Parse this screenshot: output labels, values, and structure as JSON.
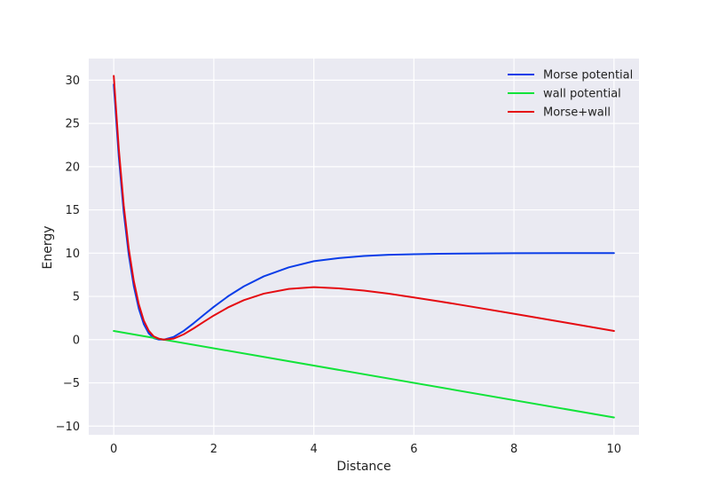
{
  "chart_data": {
    "type": "line",
    "title": "",
    "xlabel": "Distance",
    "ylabel": "Energy",
    "xlim": [
      -0.5,
      10.5
    ],
    "ylim": [
      -11,
      32.5
    ],
    "xticks": [
      0,
      2,
      4,
      6,
      8,
      10
    ],
    "xtick_labels": [
      "0",
      "2",
      "4",
      "6",
      "8",
      "10"
    ],
    "yticks": [
      -10,
      -5,
      0,
      5,
      10,
      15,
      20,
      25,
      30
    ],
    "ytick_labels": [
      "−10",
      "−5",
      "0",
      "5",
      "10",
      "15",
      "20",
      "25",
      "30"
    ],
    "grid": true,
    "legend_position": "top-right",
    "series": [
      {
        "name": "Morse potential",
        "color": "#0a3de8",
        "x": [
          0,
          0.1,
          0.2,
          0.3,
          0.4,
          0.5,
          0.6,
          0.7,
          0.8,
          0.9,
          1.0,
          1.2,
          1.4,
          1.6,
          1.8,
          2.0,
          2.3,
          2.6,
          3.0,
          3.5,
          4.0,
          4.5,
          5.0,
          5.5,
          6.0,
          6.5,
          7.0,
          8.0,
          9.0,
          10.0
        ],
        "y": [
          29.5,
          21.2,
          14.7,
          9.8,
          6.2,
          3.6,
          1.8,
          0.72,
          0.17,
          0.01,
          0.0,
          0.32,
          1.02,
          1.91,
          2.86,
          3.79,
          5.07,
          6.16,
          7.32,
          8.36,
          9.07,
          9.43,
          9.67,
          9.81,
          9.88,
          9.93,
          9.96,
          9.99,
          10.0,
          10.0
        ]
      },
      {
        "name": "wall potential",
        "color": "#12e33a",
        "x": [
          0,
          10
        ],
        "y": [
          1,
          -9
        ]
      },
      {
        "name": "Morse+wall",
        "color": "#e50c12",
        "x": [
          0,
          0.1,
          0.2,
          0.3,
          0.4,
          0.5,
          0.6,
          0.7,
          0.8,
          0.9,
          1.0,
          1.2,
          1.4,
          1.6,
          1.8,
          2.0,
          2.3,
          2.6,
          3.0,
          3.5,
          4.0,
          4.5,
          5.0,
          5.5,
          6.0,
          6.5,
          7.0,
          8.0,
          9.0,
          10.0
        ],
        "y": [
          30.5,
          22.1,
          15.5,
          10.5,
          6.8,
          4.1,
          2.2,
          1.02,
          0.37,
          0.11,
          0.0,
          0.12,
          0.62,
          1.31,
          2.06,
          2.79,
          3.77,
          4.56,
          5.32,
          5.86,
          6.07,
          5.93,
          5.67,
          5.31,
          4.88,
          4.43,
          3.96,
          2.99,
          2.0,
          1.0
        ]
      }
    ]
  }
}
